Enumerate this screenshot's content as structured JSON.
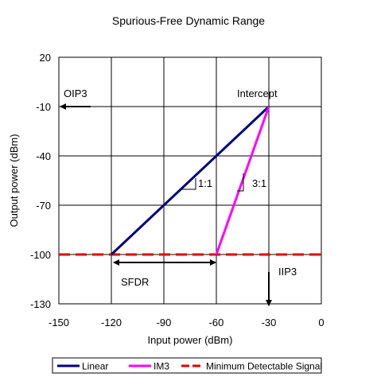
{
  "chart_data": {
    "type": "line",
    "title": "Spurious-Free Dynamic Range",
    "xlabel": "Input power (dBm)",
    "ylabel": "Output power (dBm)",
    "xlim": [
      -150,
      0
    ],
    "ylim": [
      -130,
      20
    ],
    "xticks": [
      -150,
      -120,
      -90,
      -60,
      -30,
      0
    ],
    "yticks": [
      20,
      -10,
      -40,
      -70,
      -100,
      -130
    ],
    "grid": true,
    "legend_position": "bottom",
    "series": [
      {
        "name": "Linear",
        "color": "#000080",
        "style": "solid",
        "points": [
          [
            -120,
            -100
          ],
          [
            -30,
            -10
          ]
        ]
      },
      {
        "name": "IM3",
        "color": "#ff00ff",
        "style": "solid",
        "points": [
          [
            -60,
            -100
          ],
          [
            -30,
            -10
          ]
        ]
      },
      {
        "name": "Minimum Detectable Signal",
        "color": "#e00000",
        "style": "dashed",
        "points": [
          [
            -150,
            -100
          ],
          [
            0,
            -100
          ]
        ]
      }
    ],
    "annotations": {
      "intercept": "Intercept",
      "oip3": "OIP3",
      "iip3": "IIP3",
      "sfdr": "SFDR",
      "slope_linear": "1:1",
      "slope_im3": "3:1"
    }
  }
}
